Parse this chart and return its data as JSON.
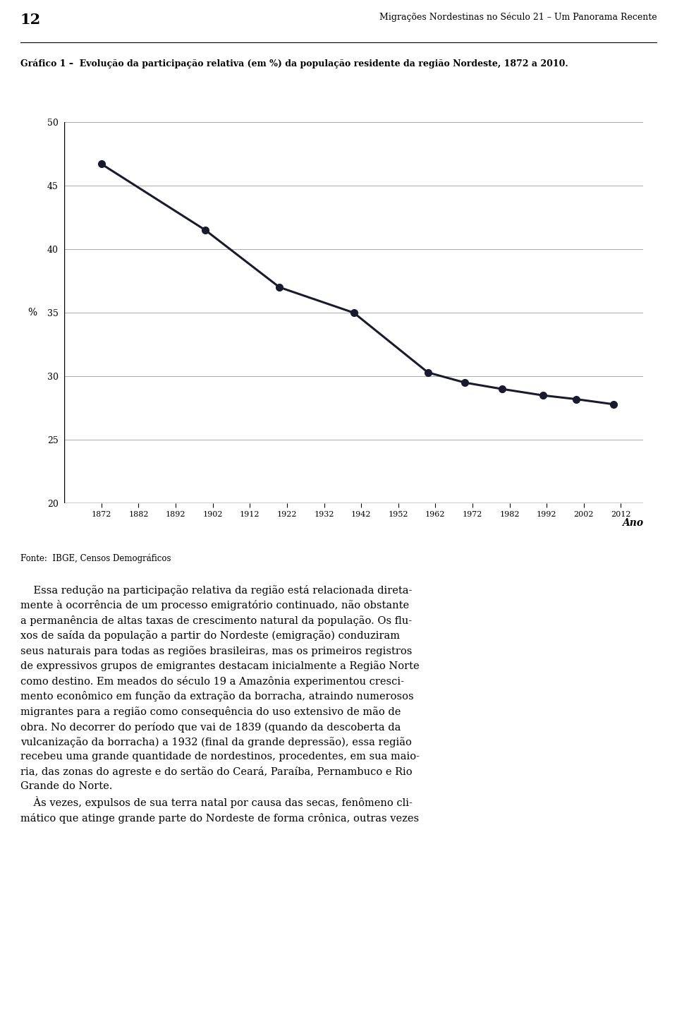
{
  "title_page_num": "12",
  "title_book": "Migrações Nordestinas no Século 21 – Um Panorama Recente",
  "chart_caption": "Gráfico 1 –  Evolução da participação relativa (em %) da população residente da região Nordeste, 1872 a 2010.",
  "x_values": [
    1872,
    1900,
    1920,
    1940,
    1960,
    1970,
    1980,
    1991,
    2000,
    2010
  ],
  "y_values": [
    46.7,
    41.5,
    37.0,
    35.0,
    30.3,
    29.5,
    29.0,
    28.5,
    28.2,
    27.8
  ],
  "x_ticks": [
    1872,
    1882,
    1892,
    1902,
    1912,
    1922,
    1932,
    1942,
    1952,
    1962,
    1972,
    1982,
    1992,
    2002,
    2012
  ],
  "y_ticks": [
    20,
    25,
    30,
    35,
    40,
    45,
    50
  ],
  "ylim": [
    20,
    50
  ],
  "xlim": [
    1862,
    2018
  ],
  "ylabel": "%",
  "xlabel_anno": "Ano",
  "source_text": "Fonte:  IBGE, Censos Demográficos",
  "line_color": "#1a1a2e",
  "marker_color": "#1a1a2e",
  "grid_color": "#aaaaaa",
  "bg_color": "#ffffff",
  "body_text_lines": [
    "    Essa redução na participação relativa da região está relacionada direta-",
    "mente à ocorrência de um processo emigratório continuado, não obstante",
    "a permanência de altas taxas de crescimento natural da população. Os flu-",
    "xos de saída da população a partir do Nordeste (emigração) conduziram",
    "seus naturais para todas as regiões brasileiras, mas os primeiros registros",
    "de expressivos grupos de emigrantes destacam inicialmente a Região Norte",
    "como destino. Em meados do século 19 a Amazônia experimentou cresci-",
    "mento econômico em função da extração da borracha, atraindo numerosos",
    "migrantes para a região como consequência do uso extensivo de mão de",
    "obra. No decorrer do período que vai de 1839 (quando da descoberta da",
    "vulcanização da borracha) a 1932 (final da grande depressão), essa região",
    "recebeu uma grande quantidade de nordestinos, procedentes, em sua maio-",
    "ria, das zonas do agreste e do sertão do Ceará, Paraíba, Pernambuco e Rio",
    "Grande do Norte.",
    "    Às vezes, expulsos de sua terra natal por causa das secas, fenômeno cli-",
    "mático que atinge grande parte do Nordeste de forma crônica, outras vezes"
  ]
}
